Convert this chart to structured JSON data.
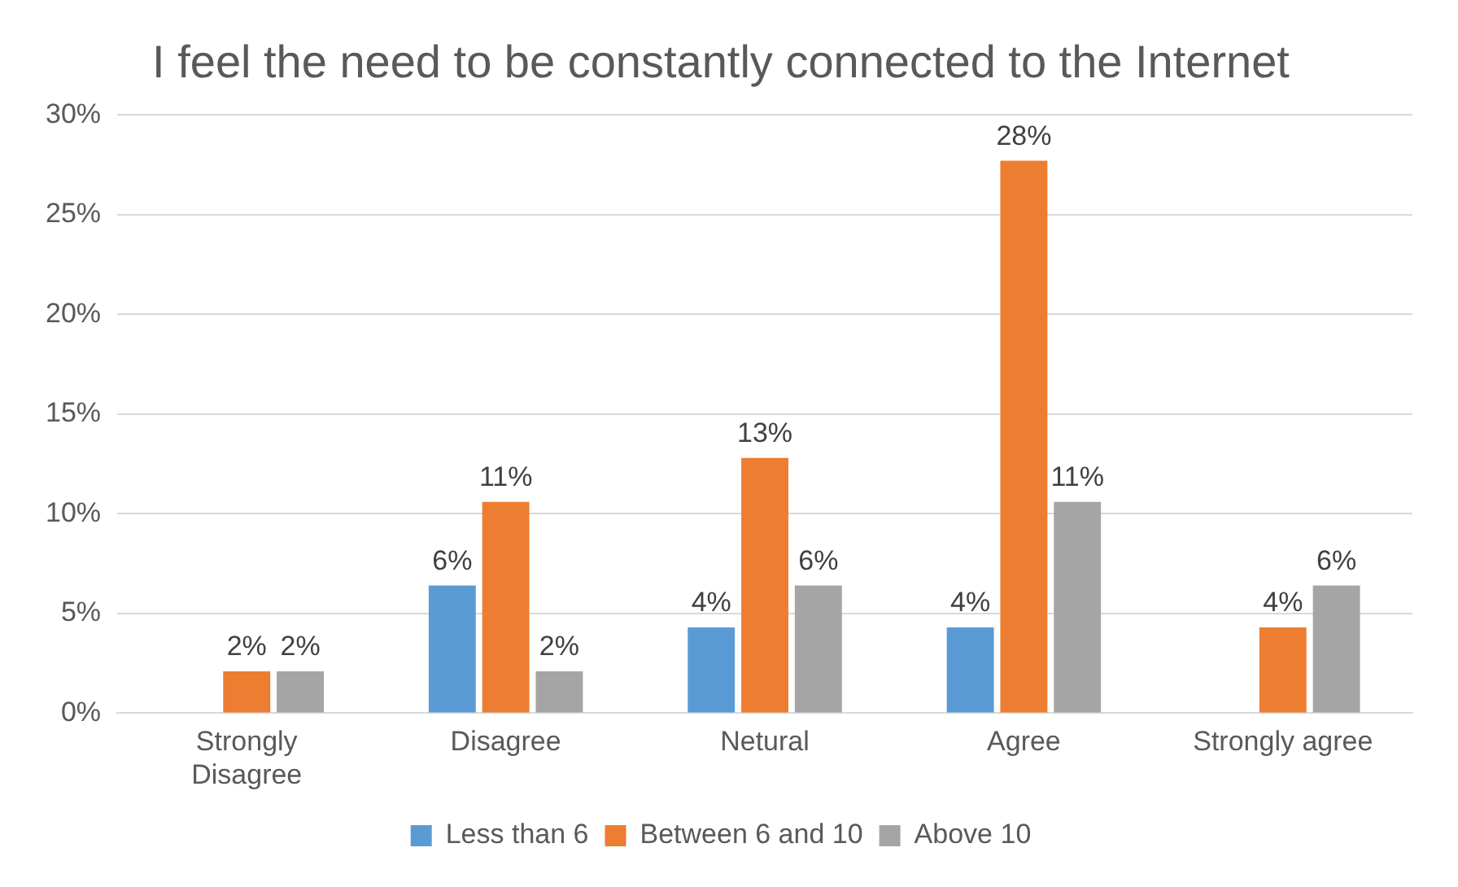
{
  "chart_data": {
    "type": "bar",
    "title": "I feel the need to be constantly connected to the Internet",
    "categories": [
      "Strongly Disagree",
      "Disagree",
      "Netural",
      "Agree",
      "Strongly agree"
    ],
    "series": [
      {
        "name": "Less than 6",
        "color": "#5b9bd5",
        "values": [
          null,
          6.4,
          4.3,
          4.3,
          null
        ],
        "value_labels": [
          null,
          "6%",
          "4%",
          "4%",
          null
        ]
      },
      {
        "name": "Between 6 and 10",
        "color": "#ed7d31",
        "values": [
          2.1,
          10.6,
          12.8,
          27.7,
          4.3
        ],
        "value_labels": [
          "2%",
          "11%",
          "13%",
          "28%",
          "4%"
        ]
      },
      {
        "name": "Above 10",
        "color": "#a5a5a5",
        "values": [
          2.1,
          2.1,
          6.4,
          10.6,
          6.4
        ],
        "value_labels": [
          "2%",
          "2%",
          "6%",
          "11%",
          "6%"
        ]
      }
    ],
    "ylim": [
      0,
      30
    ],
    "yticks": [
      {
        "value": 0,
        "label": "0%"
      },
      {
        "value": 5,
        "label": "5%"
      },
      {
        "value": 10,
        "label": "10%"
      },
      {
        "value": 15,
        "label": "15%"
      },
      {
        "value": 20,
        "label": "20%"
      },
      {
        "value": 25,
        "label": "25%"
      },
      {
        "value": 30,
        "label": "30%"
      }
    ],
    "grid": "y",
    "legend": "bottom"
  }
}
